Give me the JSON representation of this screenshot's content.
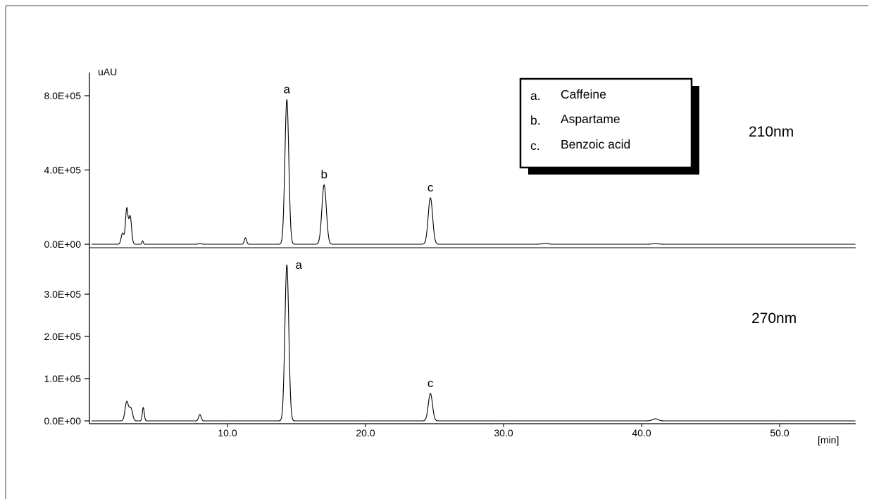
{
  "chart_data": [
    {
      "type": "line",
      "title": "210nm",
      "ylabel": "uAU",
      "xlabel": "",
      "xlim": [
        0,
        55.5
      ],
      "ylim": [
        0,
        900000
      ],
      "yticks": [
        {
          "value": 0,
          "label": "0.0E+00"
        },
        {
          "value": 400000,
          "label": "4.0E+05"
        },
        {
          "value": 800000,
          "label": "8.0E+05"
        }
      ],
      "peaks": [
        {
          "id": "a",
          "label": "a",
          "x": 14.3,
          "y": 780000,
          "width": 0.14
        },
        {
          "id": "b",
          "label": "b",
          "x": 17.0,
          "y": 320000,
          "width": 0.16
        },
        {
          "id": "c",
          "label": "c",
          "x": 24.7,
          "y": 250000,
          "width": 0.16
        }
      ],
      "minor_peaks": [
        {
          "x": 2.4,
          "y": 60000,
          "width": 0.1
        },
        {
          "x": 2.7,
          "y": 190000,
          "width": 0.09
        },
        {
          "x": 2.95,
          "y": 150000,
          "width": 0.1
        },
        {
          "x": 3.85,
          "y": 18000,
          "width": 0.05
        },
        {
          "x": 8.0,
          "y": 4000,
          "width": 0.1
        },
        {
          "x": 11.3,
          "y": 35000,
          "width": 0.08
        },
        {
          "x": 33.0,
          "y": 5000,
          "width": 0.2
        },
        {
          "x": 41.0,
          "y": 4000,
          "width": 0.2
        }
      ]
    },
    {
      "type": "line",
      "title": "270nm",
      "ylabel": "",
      "xlabel": "[min]",
      "xlim": [
        0,
        55.5
      ],
      "ylim": [
        0,
        380000
      ],
      "yticks": [
        {
          "value": 0,
          "label": "0.0E+00"
        },
        {
          "value": 100000,
          "label": "1.0E+05"
        },
        {
          "value": 200000,
          "label": "2.0E+05"
        },
        {
          "value": 300000,
          "label": "3.0E+05"
        }
      ],
      "xticks": [
        {
          "value": 10,
          "label": "10.0"
        },
        {
          "value": 20,
          "label": "20.0"
        },
        {
          "value": 30,
          "label": "30.0"
        },
        {
          "value": 40,
          "label": "40.0"
        },
        {
          "value": 50,
          "label": "50.0"
        }
      ],
      "peaks": [
        {
          "id": "a",
          "label": "a",
          "x": 14.3,
          "y": 370000,
          "width": 0.14
        },
        {
          "id": "c",
          "label": "c",
          "x": 24.7,
          "y": 65000,
          "width": 0.15
        }
      ],
      "minor_peaks": [
        {
          "x": 2.7,
          "y": 45000,
          "width": 0.12
        },
        {
          "x": 3.0,
          "y": 30000,
          "width": 0.12
        },
        {
          "x": 3.9,
          "y": 32000,
          "width": 0.07
        },
        {
          "x": 8.0,
          "y": 15000,
          "width": 0.09
        },
        {
          "x": 41.0,
          "y": 5000,
          "width": 0.2
        }
      ]
    }
  ],
  "legend": {
    "items": [
      {
        "key": "a.",
        "name": "Caffeine"
      },
      {
        "key": "b.",
        "name": "Aspartame"
      },
      {
        "key": "c.",
        "name": "Benzoic acid"
      }
    ]
  }
}
